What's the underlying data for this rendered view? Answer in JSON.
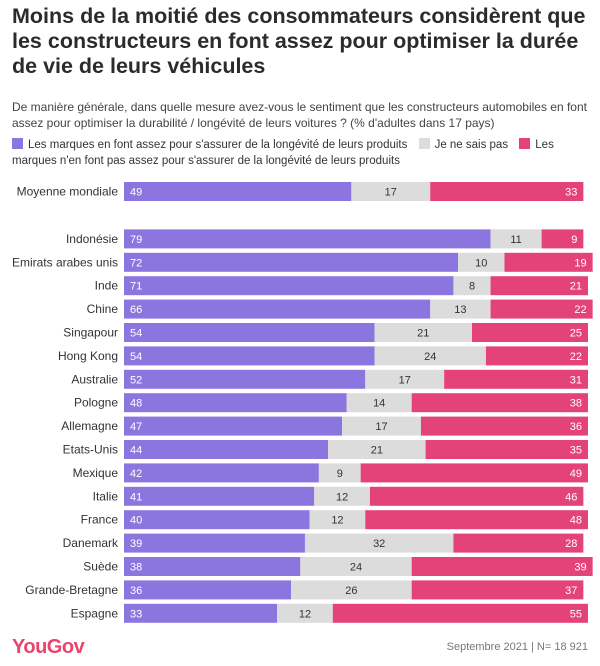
{
  "title": "Moins de la moitié des consommateurs considèrent que les constructeurs en font assez pour optimiser la durée de vie de leurs véhicules",
  "subtitle": "De manière générale, dans quelle mesure avez-vous le sentiment que les constructeurs automobiles en font assez pour optimiser la durabilité / longévité de leurs voitures ? (% d'adultes dans 17 pays)",
  "legend": [
    {
      "label": "Les marques en font assez pour s'assurer de la longévité de leurs produits",
      "color": "#8b76e0"
    },
    {
      "label": "Je ne sais pas",
      "color": "#dcdcdc"
    },
    {
      "label": "Les marques n'en font pas assez pour s'assurer de la longévité de leurs produits",
      "color": "#e4437a"
    }
  ],
  "footer": {
    "brand": "YouGov",
    "note": "Septembre 2021 | N= 18 921"
  },
  "chart_data": {
    "type": "bar",
    "stacked": true,
    "orientation": "horizontal",
    "categories": [
      "Moyenne mondiale",
      "Indonésie",
      "Emirats arabes unis",
      "Inde",
      "Chine",
      "Singapour",
      "Hong Kong",
      "Australie",
      "Pologne",
      "Allemagne",
      "Etats-Unis",
      "Mexique",
      "Italie",
      "France",
      "Danemark",
      "Suède",
      "Grande-Bretagne",
      "Espagne"
    ],
    "series": [
      {
        "name": "Les marques en font assez pour s'assurer de la longévité de leurs produits",
        "color": "#8b76e0",
        "label_color": "#ffffff",
        "values": [
          49,
          79,
          72,
          71,
          66,
          54,
          54,
          52,
          48,
          47,
          44,
          42,
          41,
          40,
          39,
          38,
          36,
          33
        ]
      },
      {
        "name": "Je ne sais pas",
        "color": "#dcdcdc",
        "label_color": "#333333",
        "values": [
          17,
          11,
          10,
          8,
          13,
          21,
          24,
          17,
          14,
          17,
          21,
          9,
          12,
          12,
          32,
          24,
          26,
          12
        ]
      },
      {
        "name": "Les marques n'en font pas assez pour s'assurer de la longévité de leurs produits",
        "color": "#e4437a",
        "label_color": "#ffffff",
        "values": [
          33,
          9,
          19,
          21,
          22,
          25,
          22,
          31,
          38,
          36,
          35,
          49,
          46,
          48,
          28,
          39,
          37,
          55
        ]
      }
    ],
    "xlim": [
      0,
      100
    ]
  }
}
